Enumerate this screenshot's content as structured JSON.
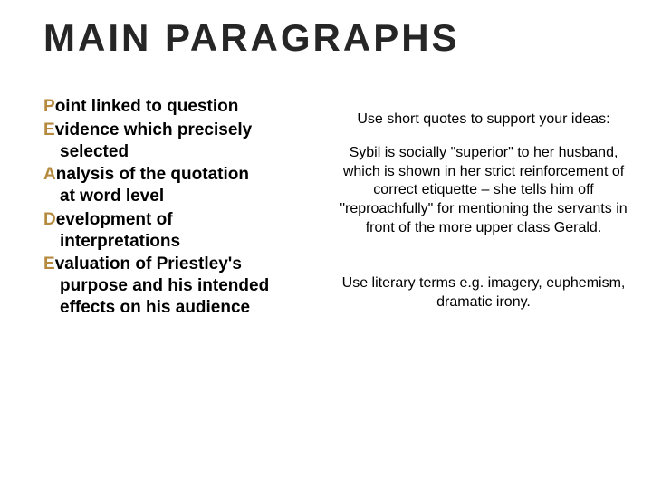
{
  "title": "MAIN PARAGRAPHS",
  "colors": {
    "lead_letter": "#b58a3f",
    "body_text": "#000000",
    "title_text": "#262626",
    "background": "#ffffff"
  },
  "typography": {
    "title_fontsize": 42,
    "title_letter_spacing": 3,
    "body_fontsize": 19,
    "right_fontsize": 16
  },
  "pead": [
    {
      "lead": "P",
      "rest": "oint linked to question",
      "cont": ""
    },
    {
      "lead": "E",
      "rest": "vidence which precisely",
      "cont": "selected"
    },
    {
      "lead": "A",
      "rest": "nalysis of the quotation",
      "cont": "at word level"
    },
    {
      "lead": "D",
      "rest": "evelopment of",
      "cont": "interpretations"
    },
    {
      "lead": "E",
      "rest": "valuation of Priestley's",
      "cont": "purpose and his intended effects on his audience"
    }
  ],
  "right": {
    "block1": "Use short quotes to support your ideas:",
    "block2": "Sybil is socially \"superior\" to her husband, which is shown in her strict reinforcement of correct etiquette – she tells him off \"reproachfully\" for mentioning the servants in front of the more upper class Gerald.",
    "block3": "Use literary terms e.g. imagery, euphemism, dramatic irony."
  }
}
